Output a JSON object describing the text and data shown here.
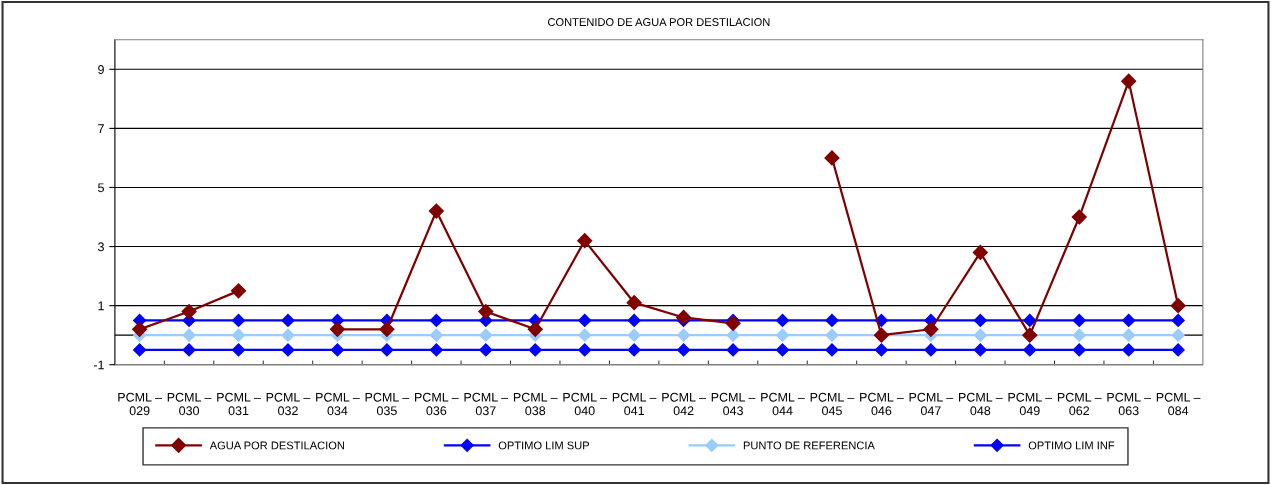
{
  "chart_data": {
    "type": "line",
    "title": "CONTENIDO DE AGUA POR DESTILACION",
    "categories": [
      "PCML – 029",
      "PCML – 030",
      "PCML – 031",
      "PCML – 032",
      "PCML – 034",
      "PCML – 035",
      "PCML – 036",
      "PCML – 037",
      "PCML – 038",
      "PCML – 040",
      "PCML – 041",
      "PCML – 042",
      "PCML – 043",
      "PCML – 044",
      "PCML – 045",
      "PCML – 046",
      "PCML – 047",
      "PCML – 048",
      "PCML – 049",
      "PCML – 062",
      "PCML – 063",
      "PCML – 084"
    ],
    "series": [
      {
        "name": "AGUA POR DESTILACION",
        "color": "#800000",
        "values": [
          0.2,
          0.8,
          1.5,
          null,
          0.2,
          0.2,
          4.2,
          0.8,
          0.2,
          3.2,
          1.1,
          0.6,
          0.4,
          null,
          6.0,
          0,
          0.2,
          2.8,
          0,
          4.0,
          8.6,
          1.0
        ]
      },
      {
        "name": "OPTIMO LIM SUP",
        "color": "#0000ff",
        "values": [
          0.5,
          0.5,
          0.5,
          0.5,
          0.5,
          0.5,
          0.5,
          0.5,
          0.5,
          0.5,
          0.5,
          0.5,
          0.5,
          0.5,
          0.5,
          0.5,
          0.5,
          0.5,
          0.5,
          0.5,
          0.5,
          0.5
        ]
      },
      {
        "name": "PUNTO DE REFERENCIA",
        "color": "#99ccff",
        "values": [
          0,
          0,
          0,
          0,
          0,
          0,
          0,
          0,
          0,
          0,
          0,
          0,
          0,
          0,
          0,
          0,
          0,
          0,
          0,
          0,
          0,
          0
        ]
      },
      {
        "name": "OPTIMO LIM INF",
        "color": "#0000ff",
        "values": [
          -0.5,
          -0.5,
          -0.5,
          -0.5,
          -0.5,
          -0.5,
          -0.5,
          -0.5,
          -0.5,
          -0.5,
          -0.5,
          -0.5,
          -0.5,
          -0.5,
          -0.5,
          -0.5,
          -0.5,
          -0.5,
          -0.5,
          -0.5,
          -0.5,
          -0.5
        ]
      }
    ],
    "ylim": [
      -1,
      10
    ],
    "yticks": [
      -1,
      1,
      3,
      5,
      7,
      9
    ],
    "grid": "y",
    "legend": "bottom",
    "marker": "diamond",
    "line_style": "solid"
  }
}
